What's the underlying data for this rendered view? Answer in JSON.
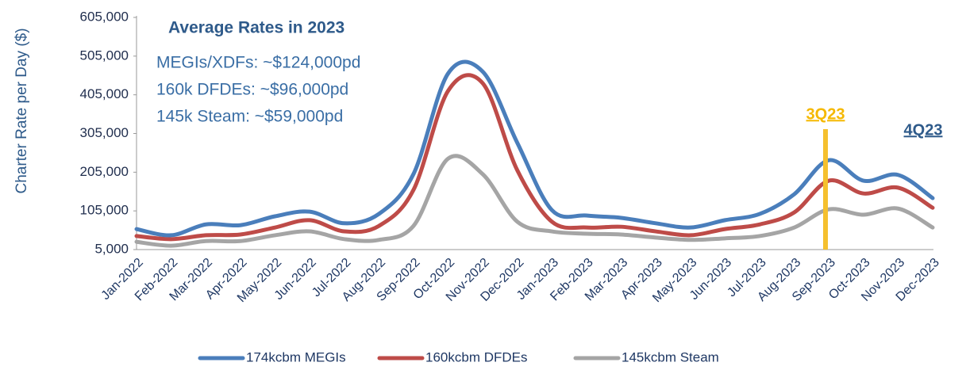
{
  "chart_data": {
    "type": "line",
    "y_label": "Charter Rate per Day ($)",
    "annotations": {
      "heading": "Average Rates in 2023",
      "lines": [
        "MEGIs/XDFs: ~$124,000pd",
        "160k DFDEs: ~$96,000pd",
        "145k Steam: ~$59,000pd"
      ],
      "q3": "3Q23",
      "q4": "4Q23"
    },
    "categories": [
      "Jan-2022",
      "Feb-2022",
      "Mar-2022",
      "Apr-2022",
      "May-2022",
      "Jun-2022",
      "Jul-2022",
      "Aug-2022",
      "Sep-2022",
      "Oct-2022",
      "Nov-2022",
      "Dec-2022",
      "Jan-2023",
      "Feb-2023",
      "Mar-2023",
      "Apr-2023",
      "May-2023",
      "Jun-2023",
      "Jul-2023",
      "Aug-2023",
      "Sep-2023",
      "Oct-2023",
      "Nov-2023",
      "Dec-2023"
    ],
    "series": [
      {
        "name": "174kcbm MEGIs",
        "color": "#4a7ebb",
        "values": [
          58000,
          42000,
          70000,
          68000,
          91000,
          103000,
          73000,
          97000,
          200000,
          460000,
          465000,
          281000,
          107000,
          93000,
          87000,
          73000,
          62000,
          81000,
          97000,
          148000,
          236000,
          183000,
          198000,
          138000
        ]
      },
      {
        "name": "160kcbm DFDEs",
        "color": "#be4b48",
        "values": [
          40000,
          32000,
          42000,
          44000,
          62000,
          81000,
          52000,
          66000,
          159000,
          415000,
          435000,
          210000,
          77000,
          62000,
          64000,
          52000,
          42000,
          58000,
          70000,
          101000,
          183000,
          150000,
          165000,
          113000
        ]
      },
      {
        "name": "145kcbm Steam",
        "color": "#a5a5a5",
        "values": [
          25000,
          15000,
          27000,
          27000,
          42000,
          52000,
          32000,
          30000,
          66000,
          240000,
          200000,
          77000,
          52000,
          46000,
          44000,
          36000,
          30000,
          34000,
          40000,
          62000,
          109000,
          95000,
          111000,
          62000
        ]
      }
    ],
    "ylim": [
      5000,
      605000
    ],
    "yticks": [
      {
        "value": 5000,
        "label": "5,000"
      },
      {
        "value": 105000,
        "label": "105,000"
      },
      {
        "value": 205000,
        "label": "205,000"
      },
      {
        "value": 305000,
        "label": "305,000"
      },
      {
        "value": 405000,
        "label": "405,000"
      },
      {
        "value": 505000,
        "label": "505,000"
      },
      {
        "value": 605000,
        "label": "605,000"
      }
    ],
    "grid": false,
    "legend": "bottom"
  }
}
